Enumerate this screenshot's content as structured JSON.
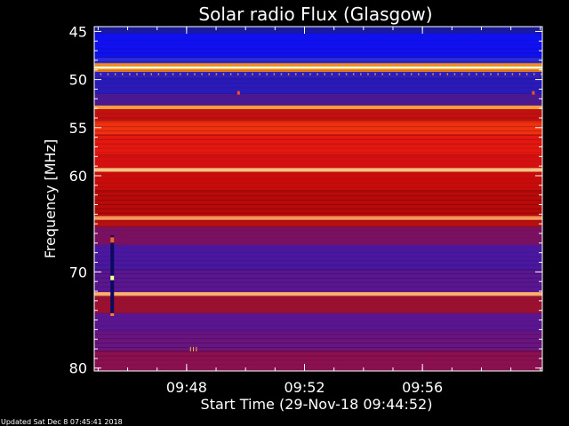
{
  "chart_data": {
    "type": "heatmap",
    "title": "Solar radio Flux (Glasgow)",
    "xlabel": "Start Time (29-Nov-18 09:44:52)",
    "ylabel": "Frequency [MHz]",
    "x_ticks": [
      "09:48",
      "09:52",
      "09:56"
    ],
    "x_tick_minutes": [
      3.133,
      7.133,
      11.133
    ],
    "xlim_minutes": [
      0,
      15.2
    ],
    "y_ticks": [
      45,
      50,
      55,
      60,
      70,
      80
    ],
    "ylim": [
      44.5,
      80.3
    ],
    "bands": [
      {
        "from": 44.5,
        "to": 45.2,
        "color": "#1a1aa0"
      },
      {
        "from": 45.2,
        "to": 47.7,
        "color": "#1010f0"
      },
      {
        "from": 47.7,
        "to": 48.3,
        "color": "#2a2ae0"
      },
      {
        "from": 48.3,
        "to": 48.6,
        "color": "#ff8a1a"
      },
      {
        "from": 48.6,
        "to": 48.9,
        "color": "#ffffcc"
      },
      {
        "from": 48.9,
        "to": 49.2,
        "color": "#ff8a1a"
      },
      {
        "from": 49.2,
        "to": 49.8,
        "color": "#3020c0"
      },
      {
        "from": 49.8,
        "to": 51.5,
        "color": "#2a1ab8"
      },
      {
        "from": 51.5,
        "to": 52.7,
        "color": "#4a1890"
      },
      {
        "from": 52.7,
        "to": 53.1,
        "color": "#ff9a40"
      },
      {
        "from": 53.1,
        "to": 54.3,
        "color": "#c01010"
      },
      {
        "from": 54.3,
        "to": 55.7,
        "color": "#f03010"
      },
      {
        "from": 55.7,
        "to": 57.8,
        "color": "#e41810"
      },
      {
        "from": 57.8,
        "to": 59.2,
        "color": "#d41010"
      },
      {
        "from": 59.2,
        "to": 59.6,
        "color": "#ffc080"
      },
      {
        "from": 59.6,
        "to": 61.5,
        "color": "#c80c0c"
      },
      {
        "from": 61.5,
        "to": 64.2,
        "color": "#b80a0a"
      },
      {
        "from": 64.2,
        "to": 64.6,
        "color": "#ffa060"
      },
      {
        "from": 64.6,
        "to": 65.3,
        "color": "#b81010"
      },
      {
        "from": 65.3,
        "to": 67.2,
        "color": "#7a1060"
      },
      {
        "from": 67.2,
        "to": 69.8,
        "color": "#4a18a0"
      },
      {
        "from": 69.8,
        "to": 72.1,
        "color": "#5a1690"
      },
      {
        "from": 72.1,
        "to": 72.5,
        "color": "#ffb070"
      },
      {
        "from": 72.5,
        "to": 74.3,
        "color": "#9a1030"
      },
      {
        "from": 74.3,
        "to": 76.2,
        "color": "#5a1690"
      },
      {
        "from": 76.2,
        "to": 78.2,
        "color": "#6a1480"
      },
      {
        "from": 78.2,
        "to": 80.3,
        "color": "#8a1050"
      }
    ],
    "burst": {
      "x_minutes": 0.55,
      "y_from": 66.2,
      "y_to": 74.5
    }
  },
  "footer": {
    "updated": "Updated Sat Dec  8 07:45:41 2018"
  }
}
